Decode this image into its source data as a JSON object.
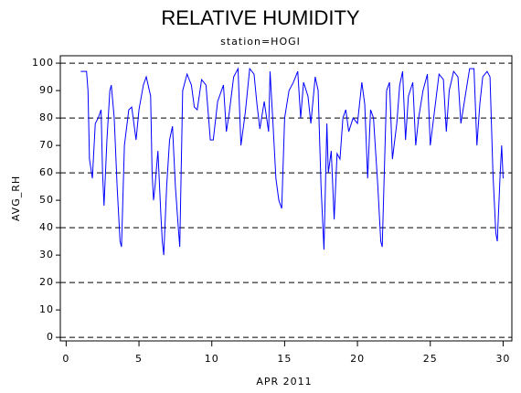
{
  "chart_data": {
    "type": "line",
    "title": "RELATIVE HUMIDITY",
    "subtitle": "station=HOGI",
    "x_label": "APR 2011",
    "y_label": "AVG_RH",
    "xlim": [
      -0.4,
      30.6
    ],
    "ylim": [
      -1.3,
      102.7
    ],
    "xticks": [
      0,
      5,
      10,
      15,
      20,
      25,
      30
    ],
    "yticks": [
      0,
      10,
      20,
      30,
      40,
      50,
      60,
      70,
      80,
      90,
      100
    ],
    "grid_lines": [
      0,
      20,
      40,
      60,
      80,
      100
    ],
    "series": [
      {
        "name": "AVG_RH",
        "color": "#0000ff",
        "x": [
          1.0,
          1.4,
          1.5,
          1.6,
          1.8,
          2.0,
          2.2,
          2.4,
          2.5,
          2.6,
          2.8,
          3.0,
          3.1,
          3.3,
          3.5,
          3.7,
          3.8,
          4.0,
          4.3,
          4.5,
          4.8,
          5.0,
          5.3,
          5.5,
          5.8,
          5.9,
          6.0,
          6.1,
          6.3,
          6.5,
          6.6,
          6.7,
          6.9,
          7.1,
          7.3,
          7.5,
          7.7,
          7.8,
          8.0,
          8.3,
          8.6,
          8.8,
          9.0,
          9.3,
          9.6,
          9.9,
          10.1,
          10.4,
          10.8,
          11.0,
          11.2,
          11.5,
          11.8,
          12.0,
          12.3,
          12.6,
          12.9,
          13.1,
          13.3,
          13.6,
          13.9,
          14.0,
          14.2,
          14.4,
          14.6,
          14.8,
          15.0,
          15.3,
          15.6,
          15.9,
          16.1,
          16.3,
          16.6,
          16.8,
          17.1,
          17.3,
          17.5,
          17.7,
          17.9,
          18.0,
          18.2,
          18.4,
          18.6,
          18.8,
          19.0,
          19.2,
          19.4,
          19.7,
          20.0,
          20.3,
          20.5,
          20.7,
          20.9,
          21.1,
          21.4,
          21.6,
          21.7,
          22.0,
          22.2,
          22.4,
          22.7,
          22.9,
          23.1,
          23.3,
          23.5,
          23.8,
          24.0,
          24.2,
          24.5,
          24.8,
          25.0,
          25.3,
          25.6,
          25.9,
          26.1,
          26.3,
          26.6,
          26.9,
          27.1,
          27.4,
          27.7,
          28.0,
          28.2,
          28.4,
          28.6,
          28.9,
          29.1,
          29.3,
          29.5,
          29.6,
          29.8,
          29.9,
          30.0
        ],
        "values": [
          97,
          97,
          90,
          65,
          58,
          78,
          80,
          83,
          60,
          48,
          72,
          90,
          92,
          80,
          55,
          35,
          33,
          70,
          83,
          84,
          72,
          83,
          92,
          95,
          88,
          60,
          50,
          55,
          68,
          45,
          35,
          30,
          55,
          72,
          77,
          55,
          40,
          33,
          90,
          96,
          92,
          84,
          83,
          94,
          92,
          72,
          72,
          86,
          92,
          75,
          82,
          95,
          98,
          70,
          82,
          98,
          96,
          85,
          76,
          86,
          75,
          97,
          78,
          58,
          50,
          47,
          80,
          90,
          93,
          97,
          80,
          93,
          88,
          78,
          95,
          90,
          55,
          32,
          78,
          60,
          68,
          43,
          67,
          65,
          80,
          83,
          75,
          80,
          78,
          93,
          85,
          58,
          83,
          80,
          55,
          35,
          33,
          90,
          93,
          65,
          78,
          92,
          97,
          72,
          88,
          93,
          70,
          80,
          90,
          96,
          70,
          83,
          96,
          94,
          75,
          90,
          97,
          95,
          78,
          88,
          98,
          98,
          70,
          85,
          95,
          97,
          95,
          60,
          38,
          35,
          60,
          70,
          58
        ]
      }
    ]
  }
}
